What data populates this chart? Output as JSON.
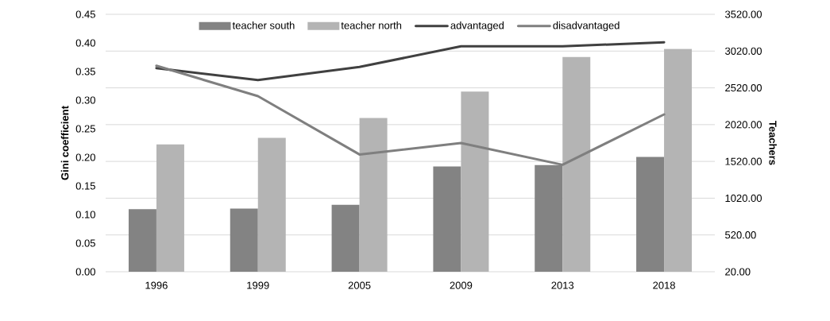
{
  "chart_data": {
    "type": "bar",
    "categories": [
      "1996",
      "1999",
      "2005",
      "2009",
      "2013",
      "2018"
    ],
    "ylabel": "Gini coefficient",
    "y2label": "Teachers",
    "ylim": [
      0,
      0.45
    ],
    "yticks": [
      {
        "value": 0,
        "label": "0.00"
      },
      {
        "value": 0.05,
        "label": "0.05"
      },
      {
        "value": 0.1,
        "label": "0.10"
      },
      {
        "value": 0.15,
        "label": "0.15"
      },
      {
        "value": 0.2,
        "label": "0.20"
      },
      {
        "value": 0.25,
        "label": "0.25"
      },
      {
        "value": 0.3,
        "label": "0.30"
      },
      {
        "value": 0.35,
        "label": "0.35"
      },
      {
        "value": 0.4,
        "label": "0.40"
      },
      {
        "value": 0.45,
        "label": "0.45"
      }
    ],
    "y2lim": [
      20,
      3520
    ],
    "y2ticks": [
      {
        "value": 20,
        "label": "20.00"
      },
      {
        "value": 520,
        "label": "520.00"
      },
      {
        "value": 1020,
        "label": "1020.00"
      },
      {
        "value": 1520,
        "label": "1520.00"
      },
      {
        "value": 2020,
        "label": "2020.00"
      },
      {
        "value": 2520,
        "label": "2520.00"
      },
      {
        "value": 3020,
        "label": "3020.00"
      },
      {
        "value": 3520,
        "label": "3520.00"
      }
    ],
    "grid": "y",
    "legend": "top",
    "series": [
      {
        "name": "teacher south",
        "color": "#838383",
        "axis": "y2",
        "values": [
          870,
          880,
          930,
          1450,
          1470,
          1580
        ]
      },
      {
        "name": "teacher north",
        "color": "#b4b4b4",
        "axis": "y2",
        "values": [
          1750,
          1840,
          2110,
          2470,
          2940,
          3050
        ]
      },
      {
        "name": "advantaged",
        "type": "line",
        "color": "#404040",
        "values": [
          0.356,
          0.335,
          0.358,
          0.394,
          0.394,
          0.401
        ]
      },
      {
        "name": "disadvantaged",
        "type": "line",
        "color": "#7f7f7f",
        "values": [
          0.36,
          0.307,
          0.205,
          0.225,
          0.187,
          0.275
        ]
      }
    ]
  }
}
